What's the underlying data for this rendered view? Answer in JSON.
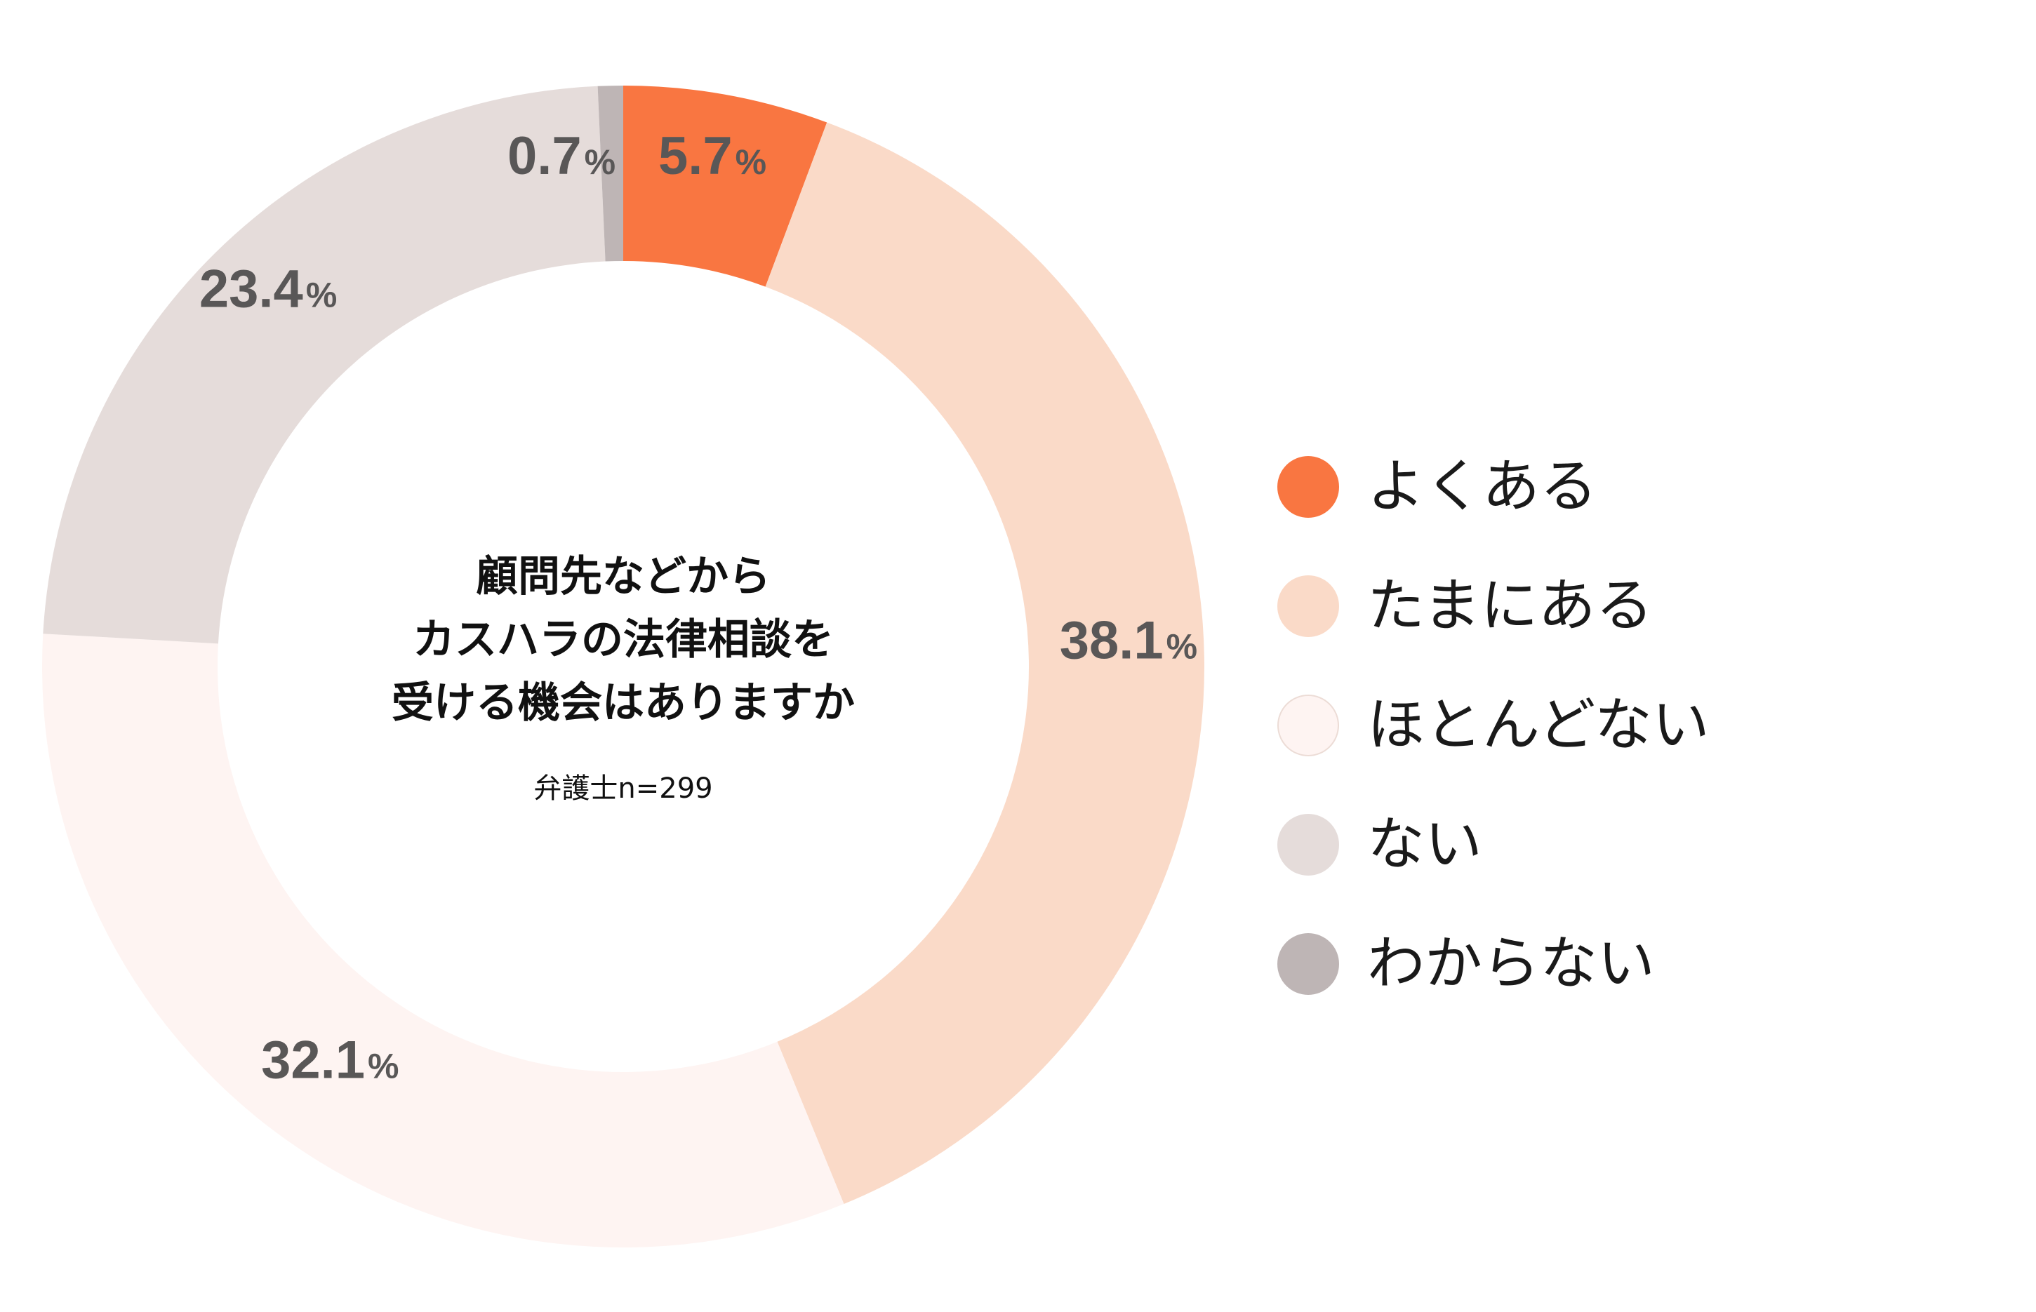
{
  "chart_data": {
    "type": "pie",
    "donut": true,
    "title": "顧問先などから\nカスハラの法律相談を\n受ける機会はありますか",
    "subtitle": "弁護士n=299",
    "unit": "%",
    "legend_position": "right",
    "slices": [
      {
        "label": "よくある",
        "value": 5.7,
        "display": "5.7",
        "color": "#F97641"
      },
      {
        "label": "たまにある",
        "value": 38.1,
        "display": "38.1",
        "color": "#FADAC8"
      },
      {
        "label": "ほとんどない",
        "value": 32.1,
        "display": "32.1",
        "color": "#FEF4F2"
      },
      {
        "label": "ない",
        "value": 23.4,
        "display": "23.4",
        "color": "#E5DCDA"
      },
      {
        "label": "わからない",
        "value": 0.7,
        "display": "0.7",
        "color": "#BEB5B5"
      }
    ]
  }
}
